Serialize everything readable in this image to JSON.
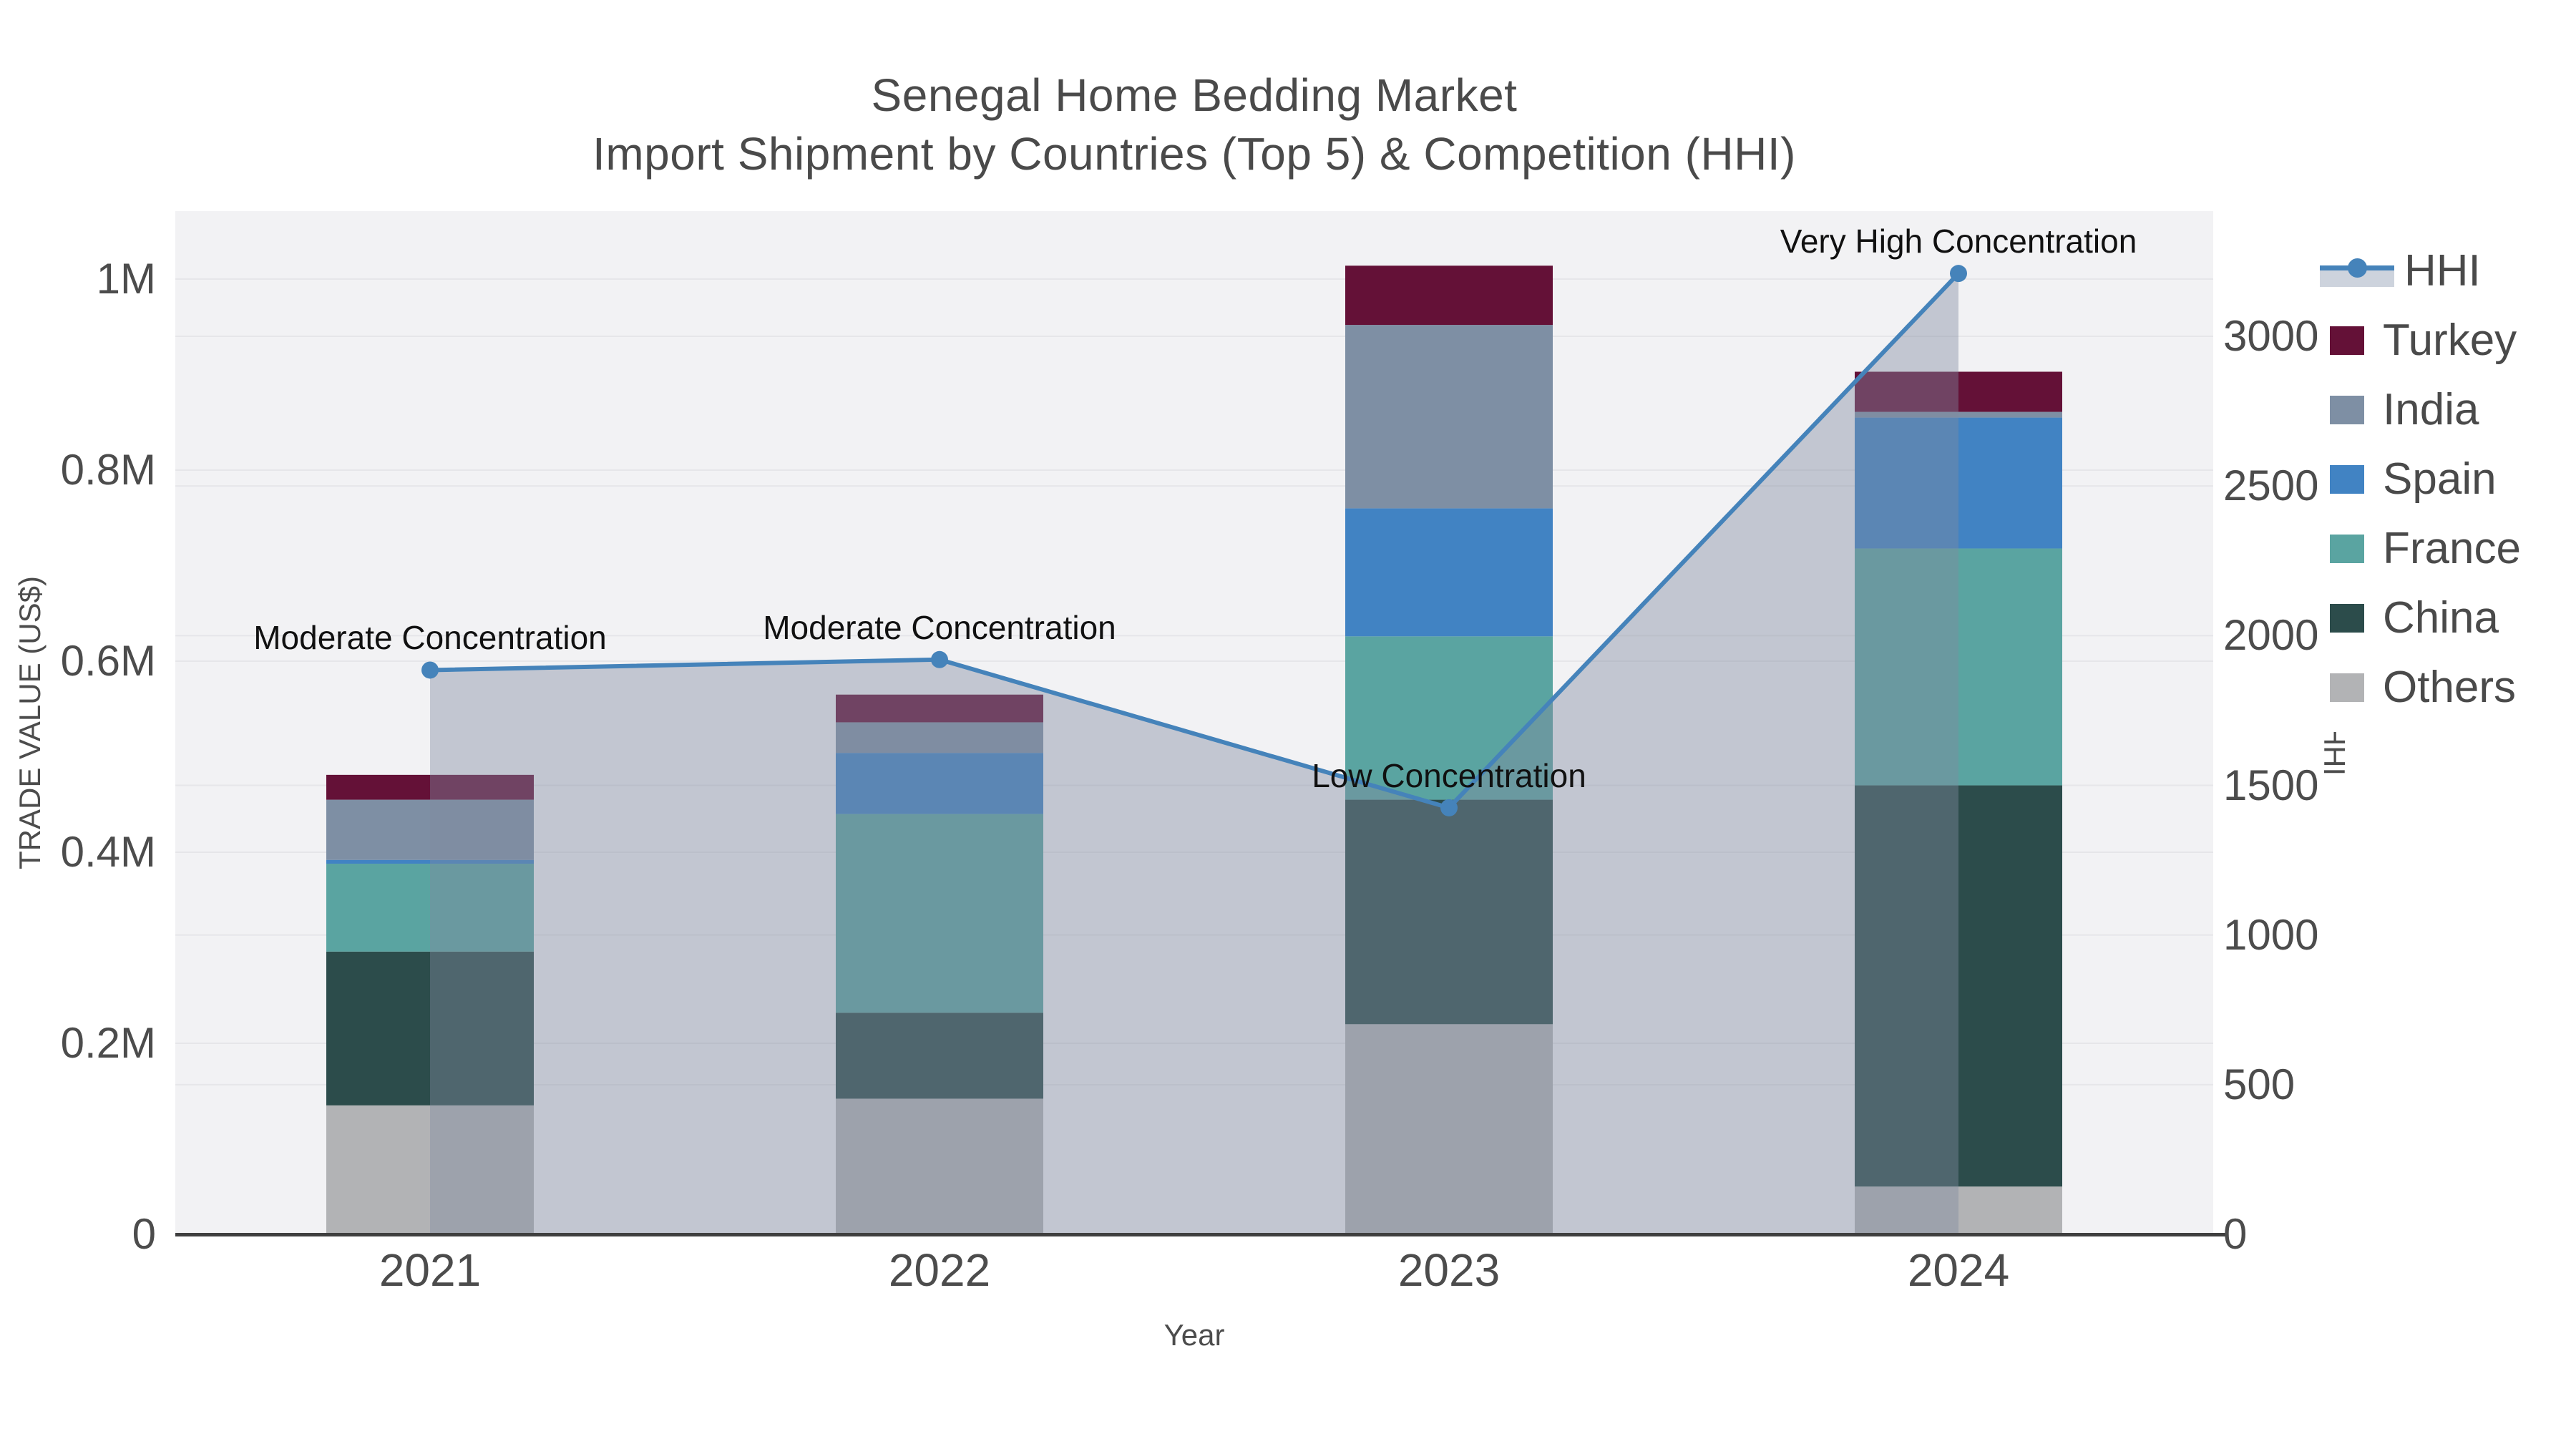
{
  "chart_data": {
    "type": "bar",
    "stacked": true,
    "line_overlay": "HHI",
    "title": "Senegal Home Bedding Market",
    "subtitle": "Import Shipment by Countries (Top 5) & Competition (HHI)",
    "xlabel": "Year",
    "categories": [
      "2021",
      "2022",
      "2023",
      "2024"
    ],
    "stack_order_bottom_to_top": [
      "Others",
      "China",
      "France",
      "Spain",
      "India",
      "Turkey"
    ],
    "series": [
      {
        "name": "Turkey",
        "color": "#641137",
        "values": [
          26000,
          29000,
          62000,
          42000
        ]
      },
      {
        "name": "India",
        "color": "#7e8fa4",
        "values": [
          63000,
          32000,
          192000,
          6000
        ]
      },
      {
        "name": "Spain",
        "color": "#4183c3",
        "values": [
          4000,
          64000,
          134000,
          137000
        ]
      },
      {
        "name": "France",
        "color": "#5aa4a1",
        "values": [
          92000,
          208000,
          171000,
          248000
        ]
      },
      {
        "name": "China",
        "color": "#2c4c4b",
        "values": [
          161000,
          90000,
          235000,
          420000
        ]
      },
      {
        "name": "Others",
        "color": "#b2b3b5",
        "values": [
          135000,
          142000,
          220000,
          50000
        ]
      }
    ],
    "hhi": {
      "name": "HHI",
      "type": "line",
      "color": "#4583ba",
      "area_fill": "rgba(128,139,159,0.42)",
      "values": [
        1885,
        1920,
        1425,
        3210
      ],
      "annotations": [
        "Moderate Concentration",
        "Moderate Concentration",
        "Low Concentration",
        "Very High Concentration"
      ]
    },
    "y_left": {
      "label": "TRADE VALUE (US$)",
      "tick_values": [
        0,
        200000,
        400000,
        600000,
        800000,
        1000000
      ],
      "tick_labels": [
        "0",
        "0.2M",
        "0.4M",
        "0.6M",
        "0.8M",
        "1M"
      ],
      "range": [
        0,
        1075000
      ]
    },
    "y_right": {
      "label": "HHI",
      "tick_values": [
        0,
        500,
        1000,
        1500,
        2000,
        2500,
        3000
      ],
      "tick_labels": [
        "0",
        "500",
        "1000",
        "1500",
        "2000",
        "2500",
        "3000"
      ],
      "range": [
        0,
        3200
      ]
    },
    "legend": {
      "position": "right",
      "entries": [
        "HHI",
        "Turkey",
        "India",
        "Spain",
        "France",
        "China",
        "Others"
      ]
    },
    "grid": true,
    "colors": {
      "plot_bg": "#f2f2f4",
      "grid": "#e6e6e9",
      "axis_line": "#3f3f3f",
      "text": "#4c4c4c"
    }
  }
}
